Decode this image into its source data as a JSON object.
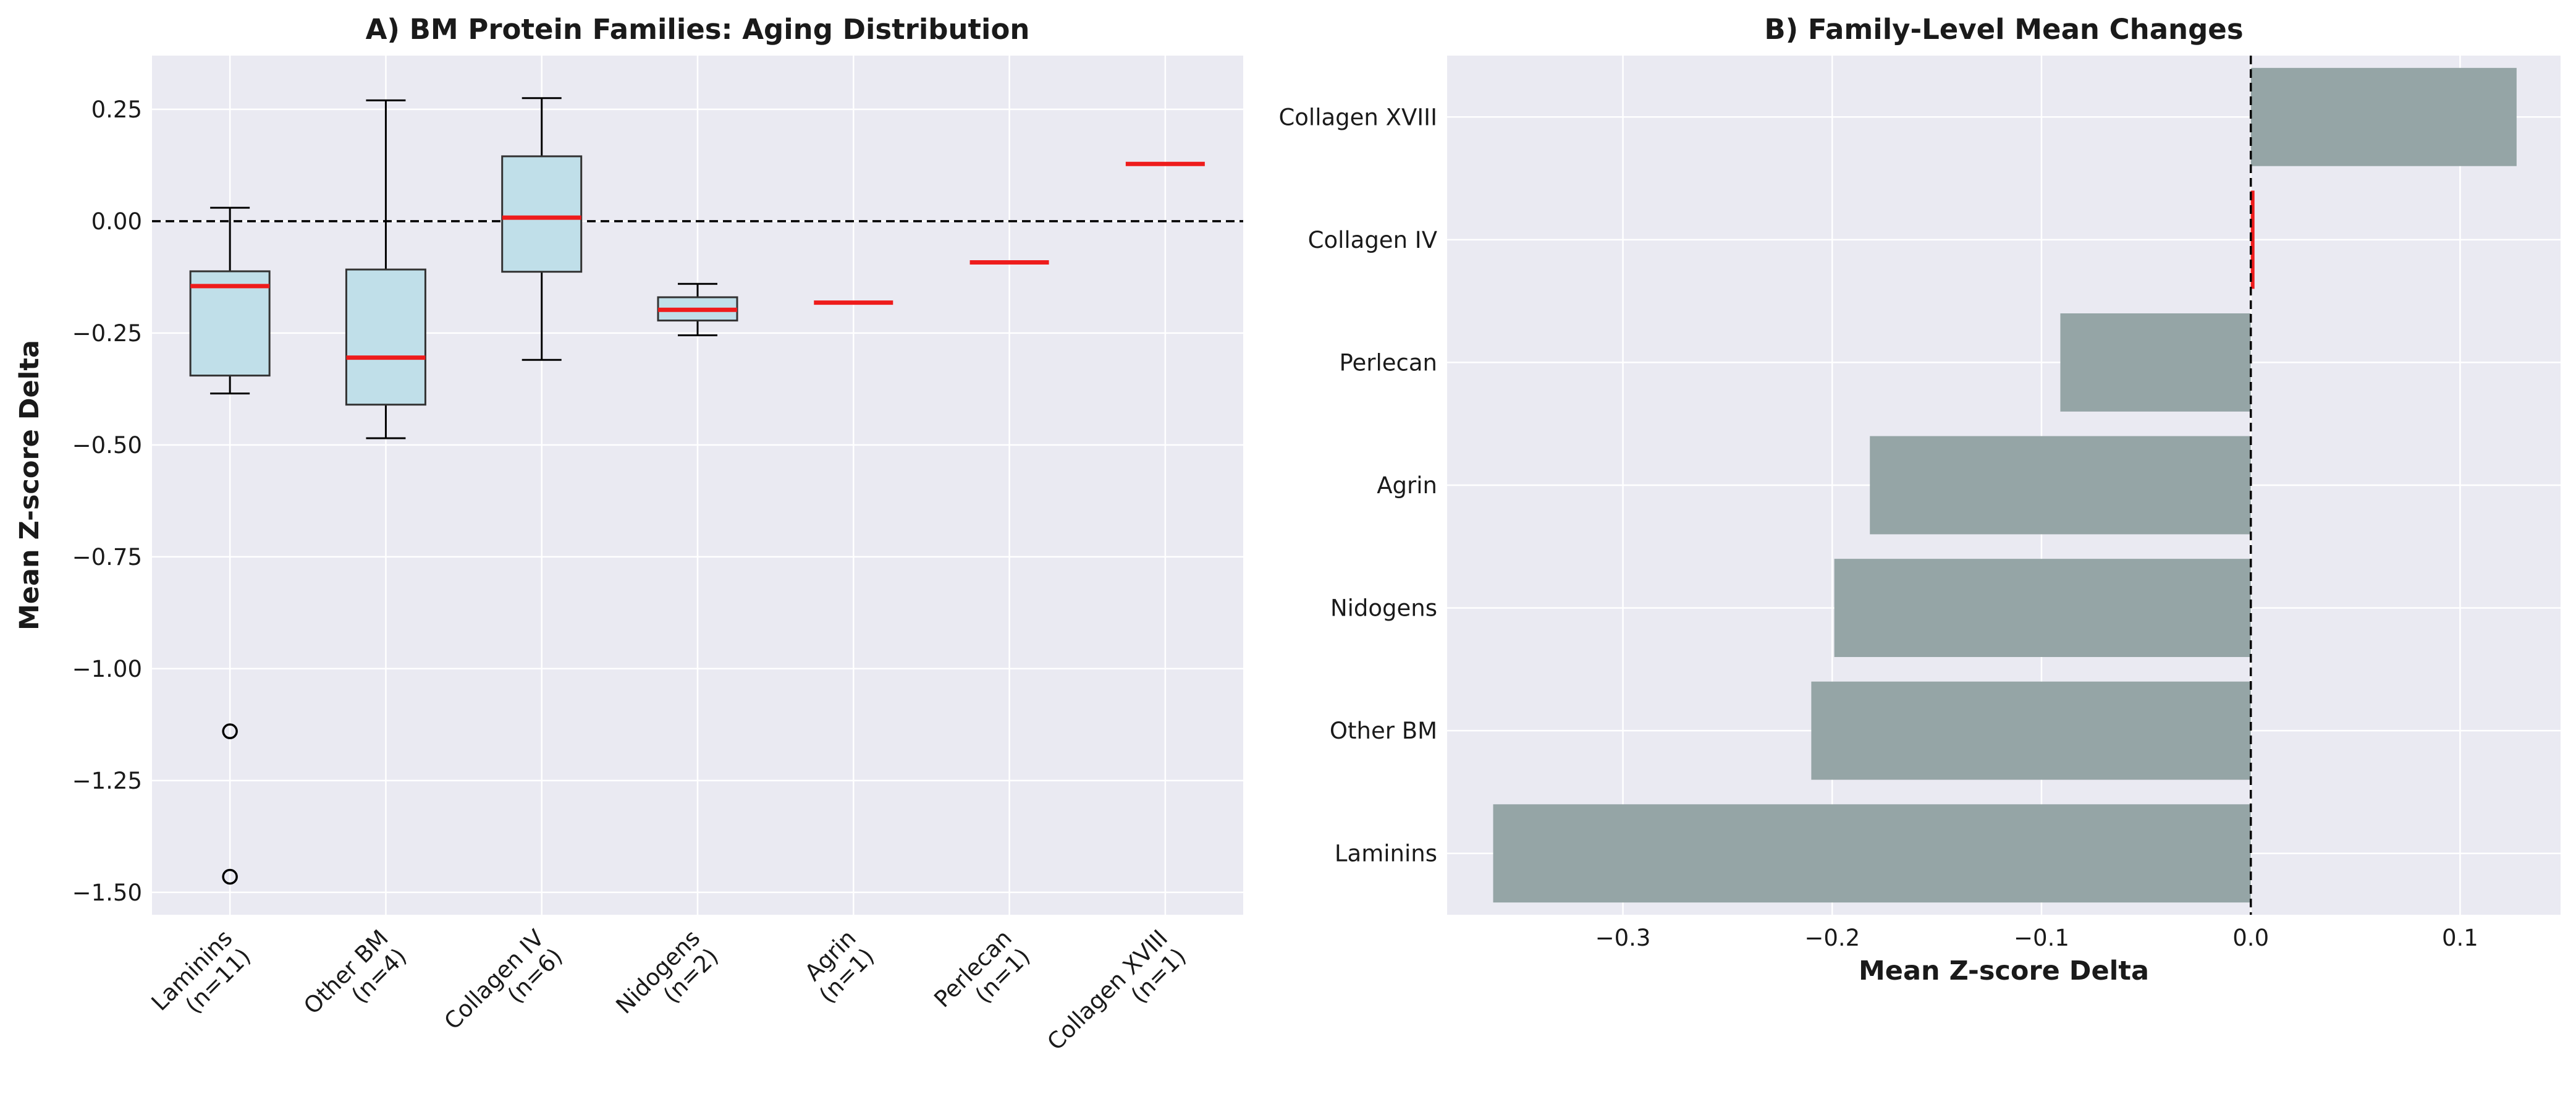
{
  "chart_data": [
    {
      "type": "box",
      "title": "A) BM Protein Families: Aging Distribution",
      "xlabel": "",
      "ylabel": "Mean Z-score Delta",
      "ylim": [
        -1.55,
        0.37
      ],
      "yticks": [
        0.25,
        0.0,
        -0.25,
        -0.5,
        -0.75,
        -1.0,
        -1.25,
        -1.5
      ],
      "ytick_labels": [
        "0.25",
        "0.00",
        "−0.25",
        "−0.50",
        "−0.75",
        "−1.00",
        "−1.25",
        "−1.50"
      ],
      "reference_line": 0.0,
      "grid": true,
      "colors": {
        "box_fill": "#c0dfe9",
        "median": "#ee1c1c",
        "background": "#eaeaf2"
      },
      "categories": [
        {
          "name": "Laminins",
          "n_label": "(n=11)",
          "whisker_low": -0.385,
          "q1": -0.345,
          "median": -0.145,
          "q3": -0.112,
          "whisker_high": 0.03,
          "outliers": [
            -1.14,
            -1.465
          ]
        },
        {
          "name": "Other BM",
          "n_label": "(n=4)",
          "whisker_low": -0.485,
          "q1": -0.41,
          "median": -0.305,
          "q3": -0.108,
          "whisker_high": 0.27,
          "outliers": []
        },
        {
          "name": "Collagen IV",
          "n_label": "(n=6)",
          "whisker_low": -0.31,
          "q1": -0.113,
          "median": 0.008,
          "q3": 0.145,
          "whisker_high": 0.275,
          "outliers": []
        },
        {
          "name": "Nidogens",
          "n_label": "(n=2)",
          "whisker_low": -0.255,
          "q1": -0.222,
          "median": -0.198,
          "q3": -0.17,
          "whisker_high": -0.14,
          "outliers": []
        },
        {
          "name": "Agrin",
          "n_label": "(n=1)",
          "whisker_low": -0.182,
          "q1": -0.182,
          "median": -0.182,
          "q3": -0.182,
          "whisker_high": -0.182,
          "outliers": []
        },
        {
          "name": "Perlecan",
          "n_label": "(n=1)",
          "whisker_low": -0.092,
          "q1": -0.092,
          "median": -0.092,
          "q3": -0.092,
          "whisker_high": -0.092,
          "outliers": []
        },
        {
          "name": "Collagen XVIII",
          "n_label": "(n=1)",
          "whisker_low": 0.128,
          "q1": 0.128,
          "median": 0.128,
          "q3": 0.128,
          "whisker_high": 0.128,
          "outliers": []
        }
      ]
    },
    {
      "type": "bar",
      "orientation": "horizontal",
      "title": "B) Family-Level Mean Changes",
      "xlabel": "Mean Z-score Delta",
      "ylabel": "",
      "xlim": [
        -0.384,
        0.148
      ],
      "xticks": [
        -0.3,
        -0.2,
        -0.1,
        0.0,
        0.1
      ],
      "xtick_labels": [
        "−0.3",
        "−0.2",
        "−0.1",
        "0.0",
        "0.1"
      ],
      "reference_line": 0.0,
      "grid": true,
      "colors": {
        "bar": "#95a5a6",
        "highlight": "#ee1c1c",
        "background": "#eaeaf2"
      },
      "categories": [
        "Collagen XVIII",
        "Collagen IV",
        "Perlecan",
        "Agrin",
        "Nidogens",
        "Other BM",
        "Laminins"
      ],
      "values": [
        0.127,
        0.001,
        -0.091,
        -0.182,
        -0.199,
        -0.21,
        -0.362
      ]
    }
  ]
}
